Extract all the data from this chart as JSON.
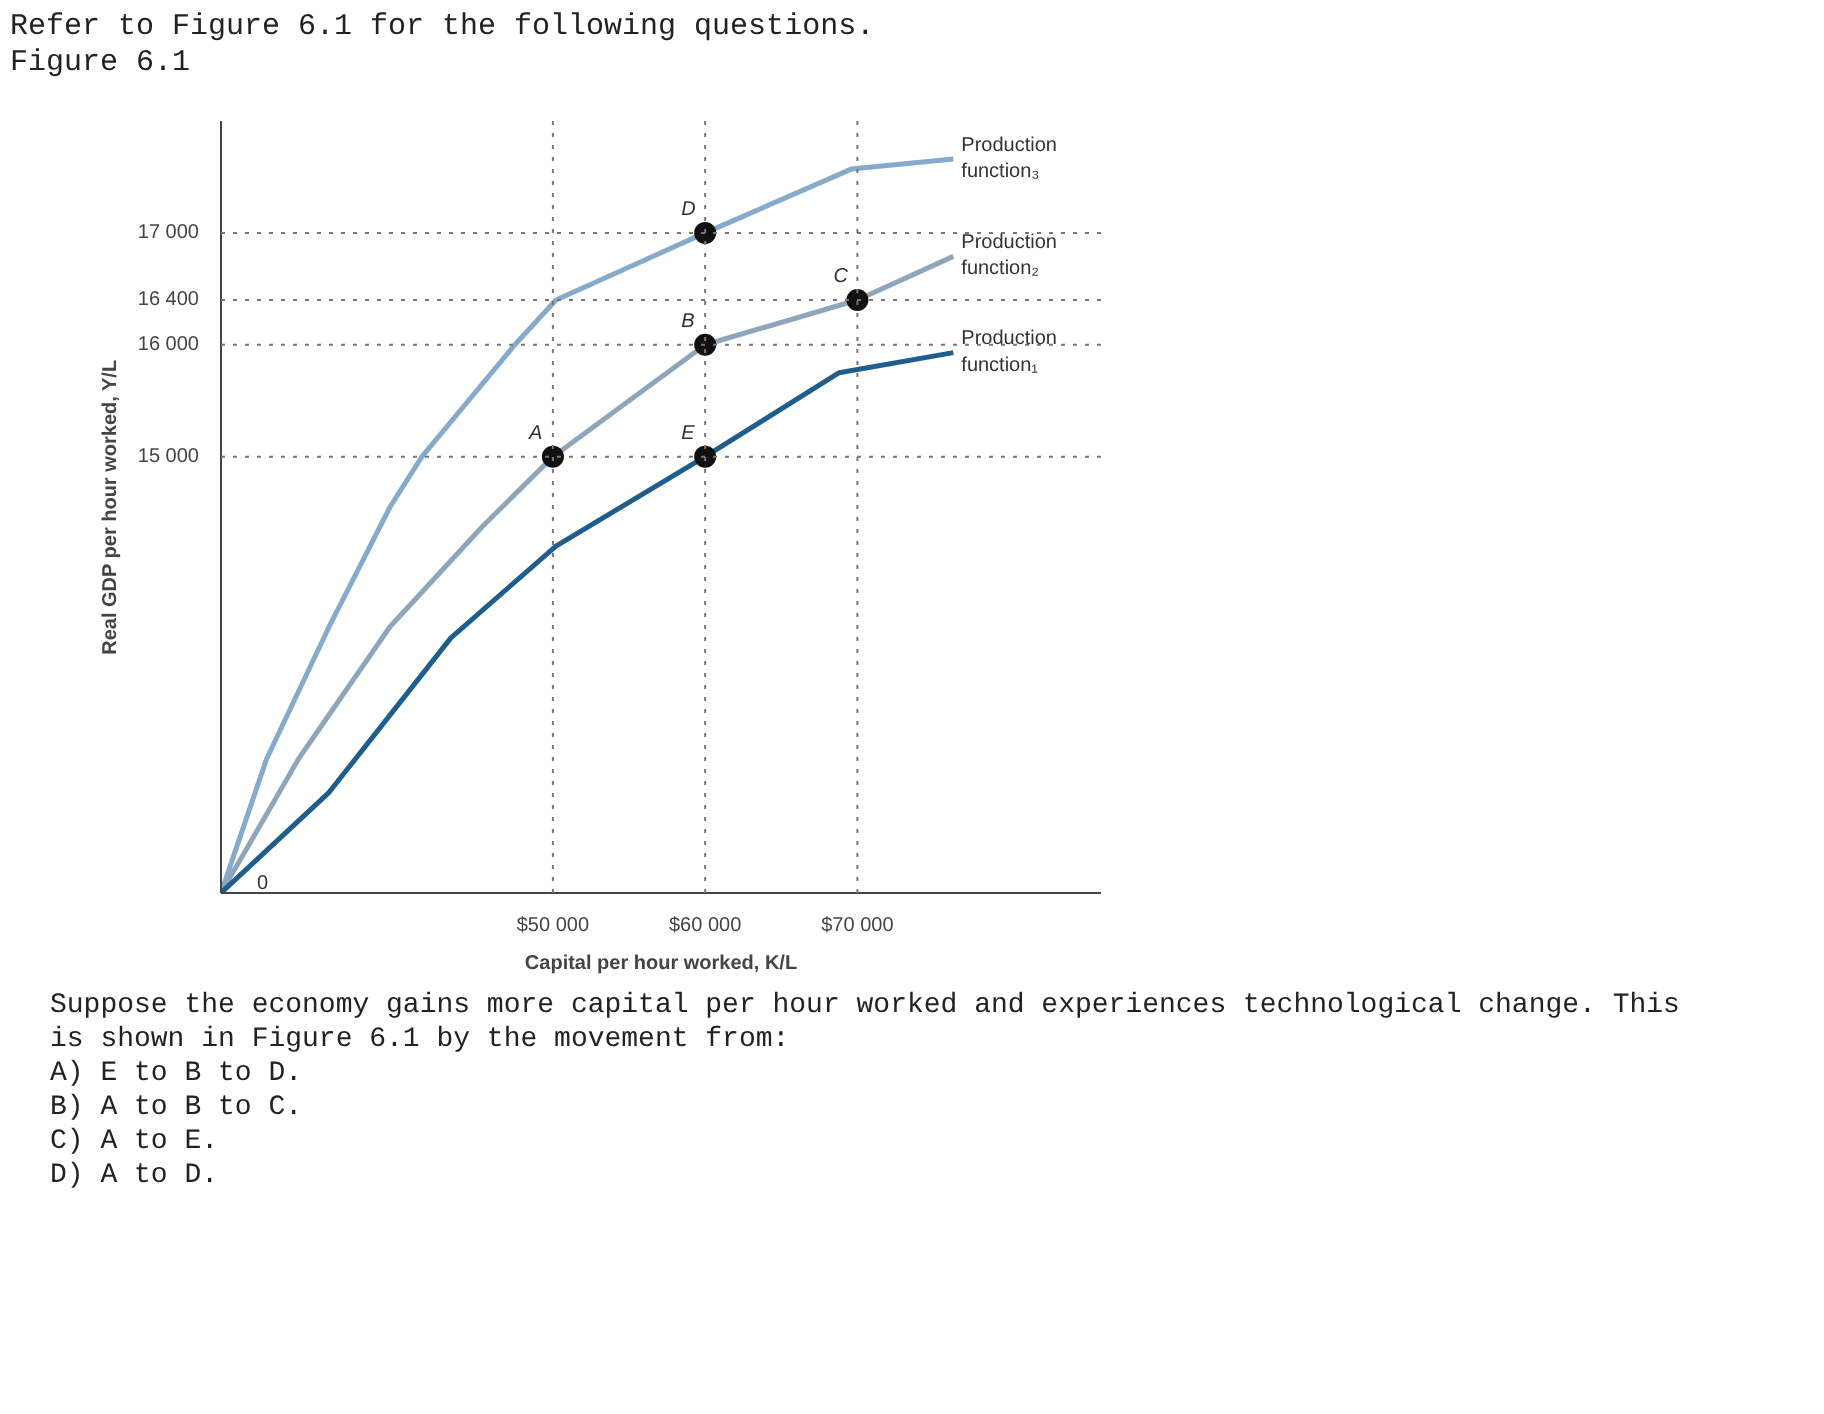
{
  "chart_data": {
    "type": "line",
    "title": "Refer to Figure 6.1 for the following questions.",
    "subtitle": "Figure 6.1",
    "xlabel": "Capital per hour worked, K/L",
    "ylabel": "Real GDP per hour worked, Y/L",
    "xlim": [
      28200,
      86000
    ],
    "ylim": [
      11100,
      18000
    ],
    "xticks": [
      {
        "value": 50000,
        "label": "$50 000"
      },
      {
        "value": 60000,
        "label": "$60 000"
      },
      {
        "value": 70000,
        "label": "$70 000"
      }
    ],
    "yticks": [
      {
        "value": 15000,
        "label": "15 000"
      },
      {
        "value": 16000,
        "label": "16 000"
      },
      {
        "value": 16400,
        "label": "16 400"
      },
      {
        "value": 17000,
        "label": "17 000"
      }
    ],
    "grid": false,
    "line_style": "solid",
    "series": [
      {
        "name": "Production function₃",
        "color": "#86aacb",
        "x": [
          28200,
          31200,
          35300,
          39300,
          41400,
          47500,
          50200,
          60000,
          69600,
          76300
        ],
        "values": [
          11100,
          12300,
          13480,
          14550,
          15000,
          16000,
          16400,
          17000,
          17570,
          17660
        ]
      },
      {
        "name": "Production function₂",
        "color": "#8ea6bb",
        "x": [
          28200,
          33300,
          39300,
          45400,
          50000,
          60000,
          70000,
          76300
        ],
        "values": [
          11100,
          12300,
          13480,
          14380,
          15000,
          16000,
          16400,
          16790
        ]
      },
      {
        "name": "Production function₁",
        "color": "#1e5d8c",
        "x": [
          28200,
          35300,
          43300,
          50200,
          60000,
          68800,
          76300
        ],
        "values": [
          11100,
          12000,
          13380,
          14200,
          15000,
          15750,
          15930
        ]
      },
      {
        "type": "scatter",
        "color": "#111111",
        "marker": "circle",
        "x": [
          50000,
          60000,
          70000,
          60000,
          60000
        ],
        "values": [
          15000,
          16000,
          16400,
          17000,
          15000
        ]
      }
    ],
    "ref_lines": [
      {
        "axis": "y",
        "value": 15000,
        "color": "#777777",
        "line_style": "dotted"
      },
      {
        "axis": "y",
        "value": 16000,
        "color": "#777777",
        "line_style": "dotted"
      },
      {
        "axis": "y",
        "value": 16400,
        "color": "#777777",
        "line_style": "dotted"
      },
      {
        "axis": "y",
        "value": 17000,
        "color": "#777777",
        "line_style": "dotted"
      },
      {
        "axis": "x",
        "value": 50000,
        "color": "#777777",
        "line_style": "dotted"
      },
      {
        "axis": "x",
        "value": 60000,
        "color": "#777777",
        "line_style": "dotted"
      },
      {
        "axis": "x",
        "value": 70000,
        "color": "#777777",
        "line_style": "dotted"
      }
    ],
    "annotations": [
      {
        "text": "A",
        "x": 50000,
        "y": 15000
      },
      {
        "text": "B",
        "x": 60000,
        "y": 16000
      },
      {
        "text": "C",
        "x": 70000,
        "y": 16400
      },
      {
        "text": "D",
        "x": 60000,
        "y": 17000
      },
      {
        "text": "E",
        "x": 60000,
        "y": 15000
      },
      {
        "text": "0",
        "x": 28200,
        "y": 11100
      },
      "Suppose the economy gains more capital per hour worked and experiences technological change. This is shown in Figure 6.1 by the movement from:",
      "A) E to B to D.",
      "B) A to B to C.",
      "C) A to E.",
      "D) A to D."
    ]
  }
}
